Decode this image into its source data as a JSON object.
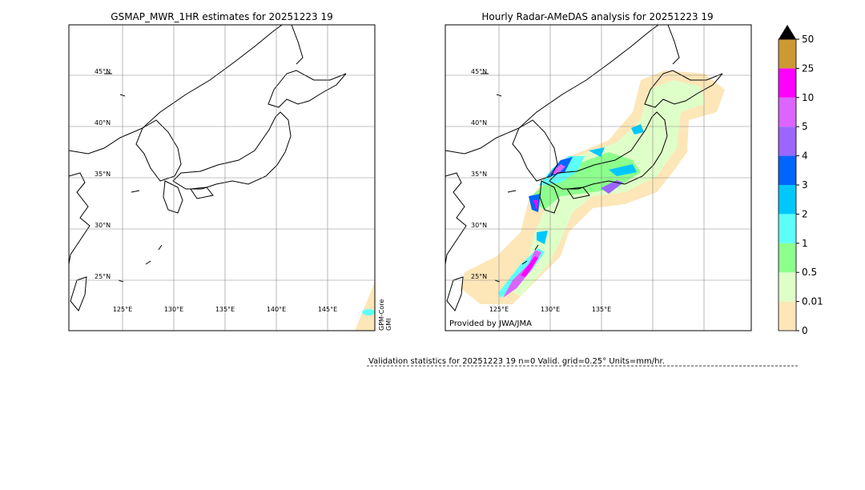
{
  "left_panel": {
    "title": "GSMAP_MWR_1HR estimates for 20251223 19",
    "lat_labels": [
      "45°N",
      "40°N",
      "35°N",
      "30°N",
      "25°N"
    ],
    "lon_labels": [
      "125°E",
      "130°E",
      "135°E",
      "140°E",
      "145°E"
    ],
    "swath_label": [
      "GPM-Core",
      "GMI"
    ]
  },
  "right_panel": {
    "title": "Hourly Radar-AMeDAS analysis for 20251223 19",
    "lat_labels": [
      "45°N",
      "40°N",
      "35°N",
      "30°N",
      "25°N"
    ],
    "lon_labels": [
      "125°E",
      "130°E",
      "135°E"
    ],
    "credit": "Provided by JWA/JMA"
  },
  "colorbar": {
    "labels": [
      "0",
      "0.01",
      "0.5",
      "1",
      "2",
      "3",
      "4",
      "5",
      "10",
      "25",
      "50"
    ],
    "colors": [
      "#fde6b8",
      "#dfffc8",
      "#8cff8c",
      "#5dfff9",
      "#00c8ff",
      "#0064ff",
      "#9a66ff",
      "#dc64ff",
      "#ff00ff",
      "#cc9933"
    ],
    "extend_color": "#000000"
  },
  "validation": "Validation statistics for 20251223 19  n=0 Valid. grid=0.25° Units=mm/hr."
}
